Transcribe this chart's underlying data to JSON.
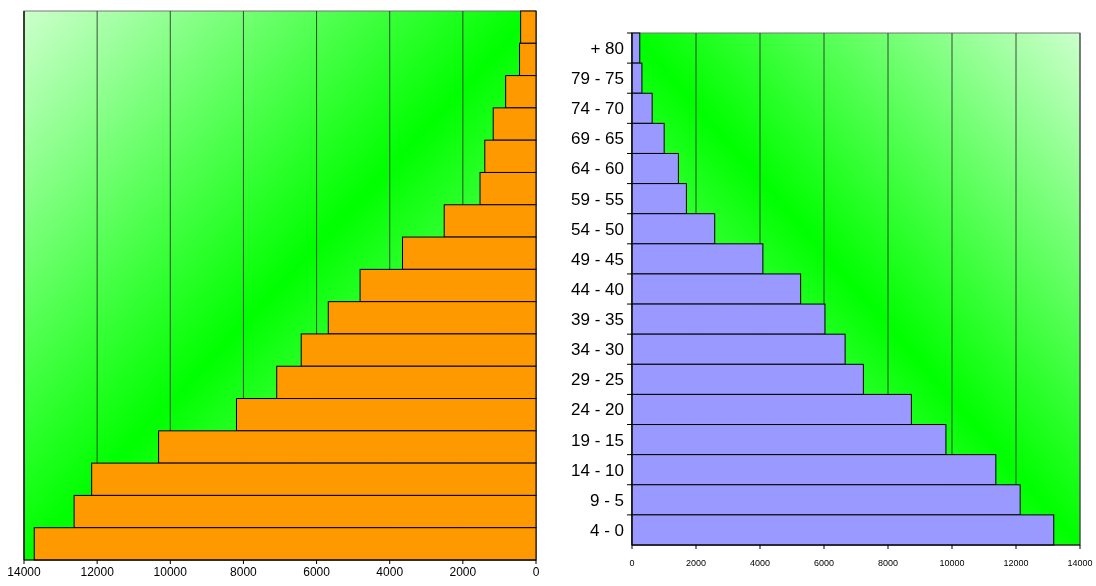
{
  "chart_data": [
    {
      "type": "bar",
      "orientation": "horizontal",
      "categories": [
        null,
        null,
        null,
        null,
        null,
        null,
        null,
        null,
        null,
        null,
        null,
        null,
        null,
        null,
        null,
        null,
        null
      ],
      "values": [
        420,
        450,
        830,
        1170,
        1400,
        1530,
        2510,
        3650,
        4810,
        5680,
        6420,
        7090,
        8190,
        10320,
        12150,
        12630,
        13720
      ],
      "color": "#ff9900",
      "xlim": [
        14000,
        0
      ],
      "xticks": [
        14000,
        12000,
        10000,
        8000,
        6000,
        4000,
        2000,
        0
      ],
      "grid": "x",
      "tick_labels": "x"
    },
    {
      "type": "bar",
      "orientation": "horizontal",
      "categories": [
        "+ 80",
        "79 - 75",
        "74 - 70",
        "69 - 65",
        "64 - 60",
        "59 - 55",
        "54 - 50",
        "49 - 45",
        "44 - 40",
        "39 - 35",
        "34 - 30",
        "29 - 25",
        "24 - 20",
        "19 - 15",
        "14 - 10",
        "9 - 5",
        "4 - 0"
      ],
      "values": [
        243,
        310,
        630,
        1005,
        1450,
        1700,
        2585,
        4090,
        5270,
        6030,
        6660,
        7230,
        8730,
        9810,
        11370,
        12130,
        13180
      ],
      "color": "#9999ff",
      "xlim": [
        0,
        14000
      ],
      "xticks": [
        0,
        2000,
        4000,
        6000,
        8000,
        10000,
        12000,
        14000
      ],
      "grid": "x"
    }
  ]
}
